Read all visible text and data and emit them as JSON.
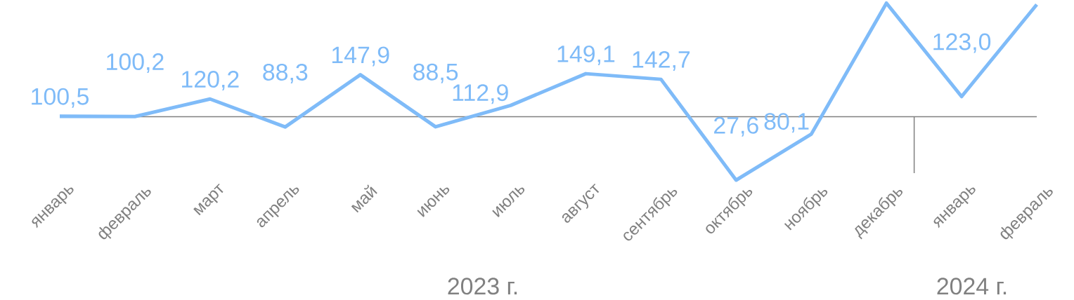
{
  "chart_data": {
    "type": "line",
    "categories": [
      "январь",
      "февраль",
      "март",
      "апрель",
      "май",
      "июнь",
      "июль",
      "август",
      "сентябрь",
      "октябрь",
      "ноябрь",
      "декабрь",
      "январь",
      "февраль"
    ],
    "series": [
      {
        "color": "#7fbbf8",
        "values": [
          100.5,
          100.2,
          120.2,
          88.3,
          147.9,
          88.5,
          112.9,
          149.1,
          142.7,
          27.6,
          80.1,
          229.6,
          123.0,
          228.0
        ],
        "value_labels": [
          "100,5",
          "100,2",
          "120,2",
          "88,3",
          "147,9",
          "88,5",
          "112,9",
          "149,1",
          "142,7",
          "27,6",
          "80,1",
          null,
          "123,0",
          null
        ]
      }
    ],
    "ref_lines": [
      {
        "axis": "y",
        "value": 100,
        "color": "#808080"
      }
    ],
    "annotations": [
      "2023 г.",
      "2024 г."
    ],
    "marker": "none",
    "line_style": "solid"
  }
}
